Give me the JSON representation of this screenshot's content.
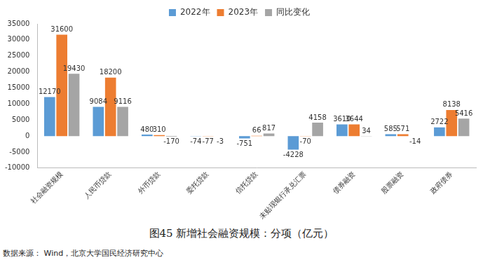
{
  "chart_data": {
    "type": "bar",
    "title": "图45 新增社会融资规模：分项（亿元）",
    "annotations": [
      "数据来源： Wind，北京大学国民经济研究中心"
    ],
    "categories": [
      "社会融资规模",
      "人民币贷款",
      "外币贷款",
      "委托贷款",
      "信托贷款",
      "未贴现银行承兑汇票",
      "债券融资",
      "股票融资",
      "政府债券"
    ],
    "series": [
      {
        "name": "2022年",
        "color": "#5b9bd5",
        "values": [
          12170,
          9084,
          480,
          -74,
          -751,
          -4228,
          3610,
          585,
          2722
        ]
      },
      {
        "name": "2023年",
        "color": "#ed7d31",
        "values": [
          31600,
          18200,
          310,
          -77,
          66,
          -70,
          3644,
          571,
          8138
        ]
      },
      {
        "name": "同比变化",
        "color": "#a5a5a5",
        "values": [
          19430,
          9116,
          -170,
          -3,
          817,
          4158,
          34,
          -14,
          5416
        ]
      }
    ],
    "ylim": [
      -10000,
      35000
    ],
    "yticks": [
      -10000,
      -5000,
      0,
      5000,
      10000,
      15000,
      20000,
      25000,
      30000,
      35000
    ],
    "grid": false,
    "legend": "top",
    "data_labels": true
  }
}
